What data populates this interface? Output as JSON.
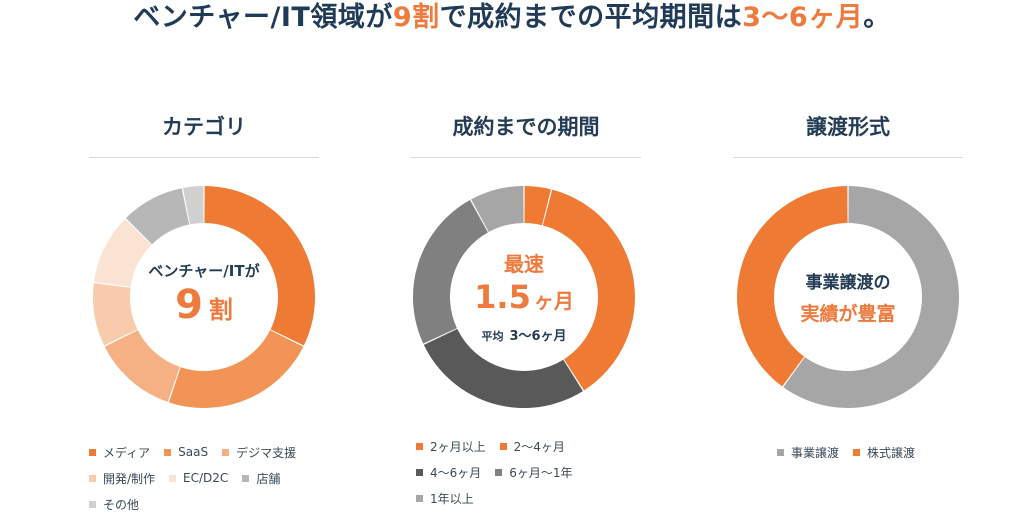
{
  "headline": {
    "part1": "ベンチャー/IT領域が",
    "hl1": "9割",
    "part2": "で成約までの平均期間は",
    "hl2": "3〜6ヶ月",
    "part3": "。"
  },
  "colors": {
    "accent": "#ee7a3d",
    "navy": "#1f3b57"
  },
  "panels": [
    {
      "title": "カテゴリ"
    },
    {
      "title": "成約までの期間"
    },
    {
      "title": "譲渡形式"
    }
  ],
  "centers": {
    "category": {
      "line1": "ベンチャー/ITが",
      "big_num": "9",
      "big_unit": "割"
    },
    "period": {
      "line1": "最速",
      "big_num": "1.5",
      "big_unit": "ヶ月",
      "sub_label": "平均",
      "sub_value": "3〜6ヶ月"
    },
    "transfer": {
      "line1": "事業譲渡の",
      "line2": "実績が豊富"
    }
  },
  "chart_data": [
    {
      "type": "pie",
      "title": "カテゴリ",
      "labels": [
        "メディア",
        "SaaS",
        "デジマ支援",
        "開発/制作",
        "EC/D2C",
        "店舗",
        "その他"
      ],
      "values": [
        31,
        22,
        12,
        9,
        10,
        9,
        3
      ],
      "colors": [
        "#ee7a34",
        "#f29455",
        "#f5b184",
        "#f8cbad",
        "#fbe3d4",
        "#b7b7b7",
        "#d0d0d0"
      ]
    },
    {
      "type": "pie",
      "title": "成約までの期間",
      "labels": [
        "2ヶ月以上",
        "2〜4ヶ月",
        "4〜6ヶ月",
        "6ヶ月〜1年",
        "1年以上"
      ],
      "values": [
        4,
        37,
        27,
        24,
        8
      ],
      "colors": [
        "#ee7a34",
        "#ee7a34",
        "#595959",
        "#808080",
        "#a6a6a6"
      ]
    },
    {
      "type": "pie",
      "title": "譲渡形式",
      "labels": [
        "事業譲渡",
        "株式譲渡"
      ],
      "values": [
        60,
        40
      ],
      "colors": [
        "#a6a6a6",
        "#ee7a34"
      ]
    }
  ]
}
